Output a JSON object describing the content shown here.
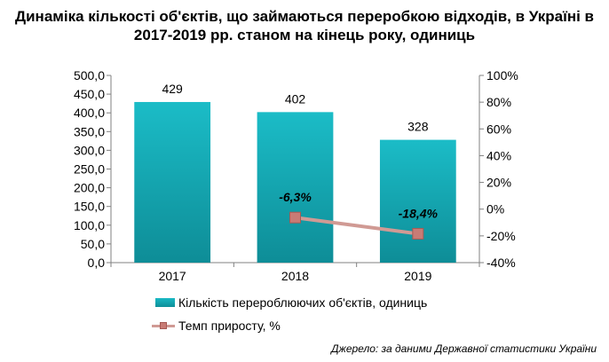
{
  "title": "Динаміка кількості об'єктів, що займаються переробкою відходів, в Україні в 2017-2019 рр. станом на кінець року, одиниць",
  "source": "Джерело: за даними Державної статистики України",
  "chart_data": {
    "type": "bar",
    "categories": [
      "2017",
      "2018",
      "2019"
    ],
    "series": [
      {
        "name": "Кількість перероблюючих об'єктів, одиниць",
        "type": "bar",
        "axis": "left",
        "values": [
          429,
          402,
          328
        ],
        "labels": [
          "429",
          "402",
          "328"
        ],
        "color": "#14a9b4"
      },
      {
        "name": "Темп приросту, %",
        "type": "line",
        "axis": "right",
        "values": [
          null,
          -6.3,
          -18.4
        ],
        "labels": [
          null,
          "-6,3%",
          "-18,4%"
        ],
        "color": "#c87b75"
      }
    ],
    "y_left": {
      "ylim": [
        0,
        500
      ],
      "ticks": [
        "0,0",
        "50,0",
        "100,0",
        "150,0",
        "200,0",
        "250,0",
        "300,0",
        "350,0",
        "400,0",
        "450,0",
        "500,0"
      ]
    },
    "y_right": {
      "ylim": [
        -40,
        100
      ],
      "ticks": [
        "-40%",
        "-20%",
        "0%",
        "20%",
        "40%",
        "60%",
        "80%",
        "100%"
      ]
    },
    "grid": false,
    "legend_position": "bottom"
  }
}
